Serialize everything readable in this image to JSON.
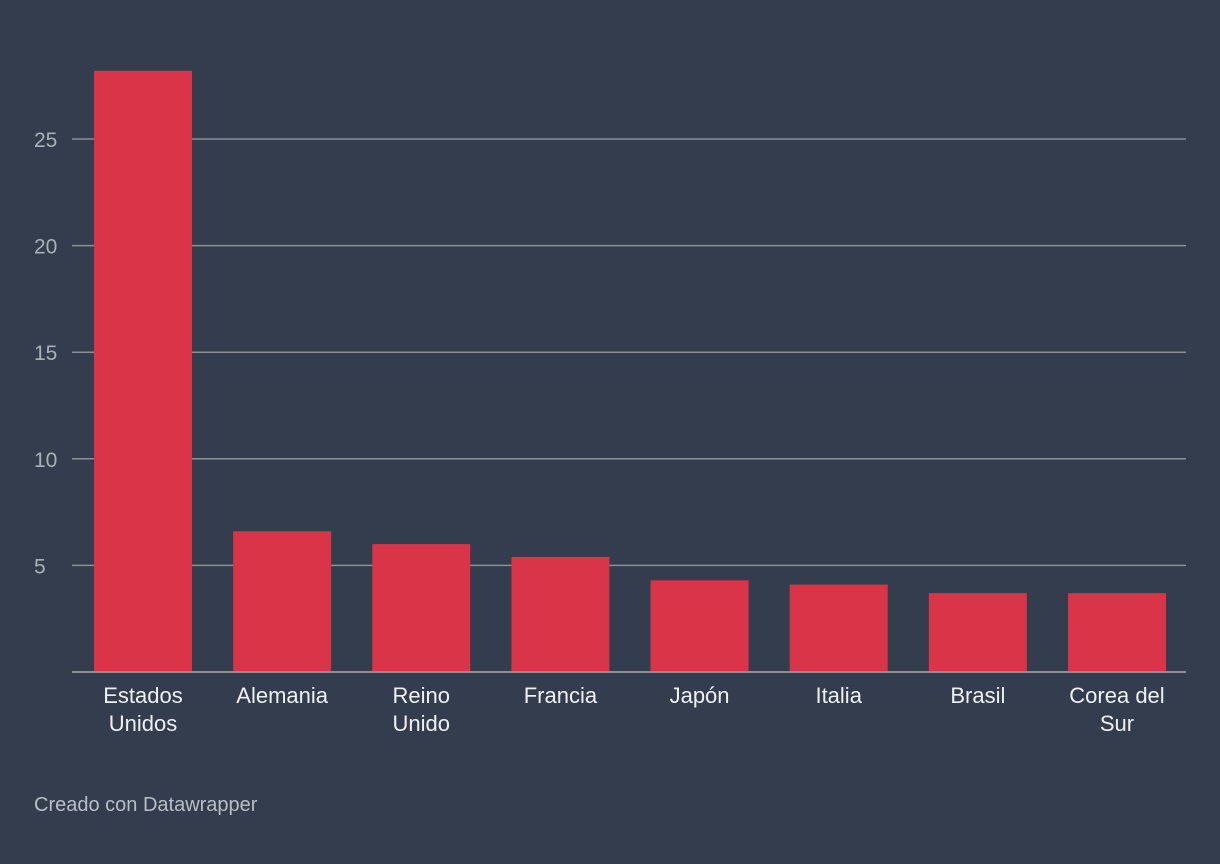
{
  "footer": {
    "credit": "Creado con Datawrapper"
  },
  "colors": {
    "background": "#333d4d",
    "bar": "#d93447",
    "grid": "#8a8f98",
    "tick_label": "#aab0ba",
    "category_label": "#eef0f3"
  },
  "chart_data": {
    "type": "bar",
    "title": "",
    "xlabel": "",
    "ylabel": "",
    "categories": [
      [
        "Estados",
        "Unidos"
      ],
      [
        "Alemania"
      ],
      [
        "Reino",
        "Unido"
      ],
      [
        "Francia"
      ],
      [
        "Japón"
      ],
      [
        "Italia"
      ],
      [
        "Brasil"
      ],
      [
        "Corea del",
        "Sur"
      ]
    ],
    "values": [
      28.2,
      6.6,
      6.0,
      5.4,
      4.3,
      4.1,
      3.7,
      3.7
    ],
    "ylim": [
      0,
      28.2
    ],
    "yticks": [
      5,
      10,
      15,
      20,
      25
    ],
    "grid": true,
    "legend": "none"
  }
}
